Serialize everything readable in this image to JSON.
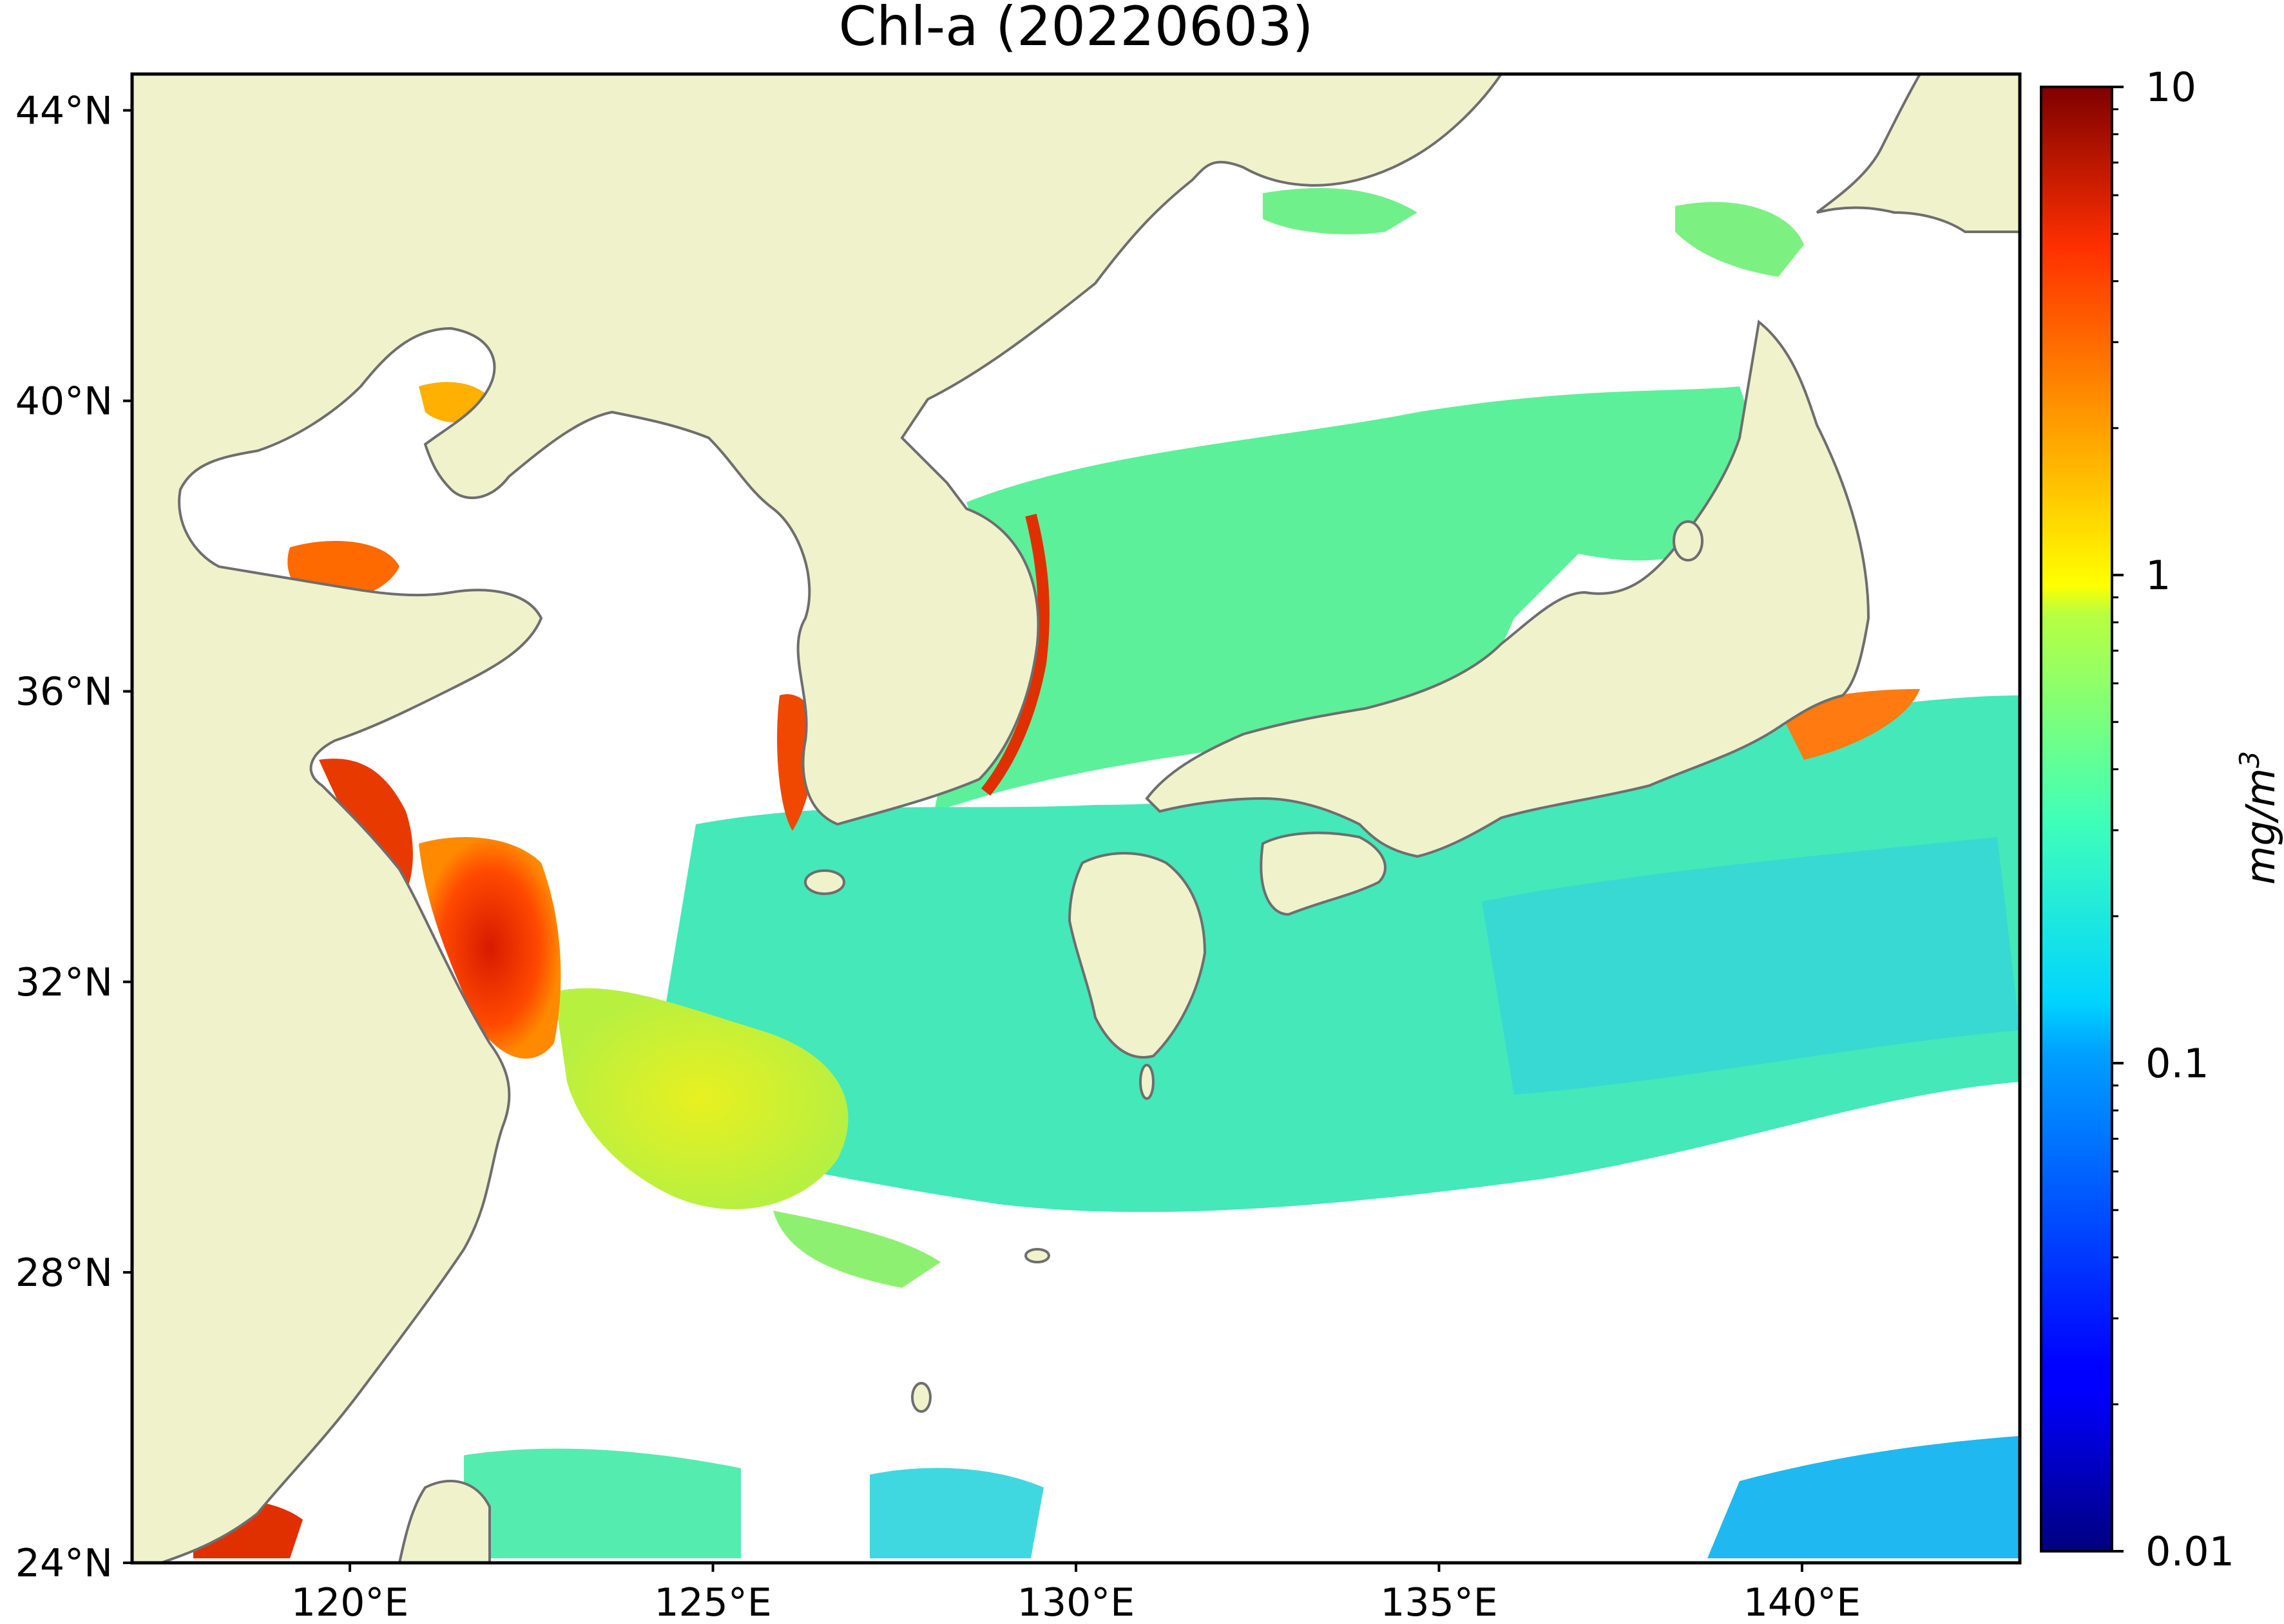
{
  "title": "Chl-a (20220603)",
  "map": {
    "lat_range": [
      24,
      44.5
    ],
    "lon_range": [
      117,
      143
    ],
    "lat_ticks": [
      {
        "value": 44,
        "label": "44°N"
      },
      {
        "value": 40,
        "label": "40°N"
      },
      {
        "value": 36,
        "label": "36°N"
      },
      {
        "value": 32,
        "label": "32°N"
      },
      {
        "value": 28,
        "label": "28°N"
      },
      {
        "value": 24,
        "label": "24°N"
      }
    ],
    "lon_ticks": [
      {
        "value": 120,
        "label": "120°E"
      },
      {
        "value": 125,
        "label": "125°E"
      },
      {
        "value": 130,
        "label": "130°E"
      },
      {
        "value": 135,
        "label": "135°E"
      },
      {
        "value": 140,
        "label": "140°E"
      }
    ],
    "colors": {
      "land": "#f0f2cc",
      "coastline": "#6e6e6e",
      "no_data": "#ffffff"
    }
  },
  "colorbar": {
    "scale": "log",
    "range": [
      0.01,
      10
    ],
    "unit_main": "mg/m",
    "unit_sup": "3",
    "ticks": [
      {
        "value": 10,
        "label": "10"
      },
      {
        "value": 1,
        "label": "1"
      },
      {
        "value": 0.1,
        "label": "0.1"
      },
      {
        "value": 0.01,
        "label": "0.01"
      }
    ],
    "colormap": "jet"
  }
}
